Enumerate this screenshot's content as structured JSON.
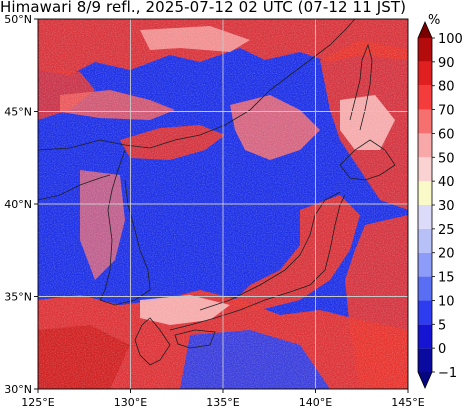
{
  "title": "Himawari 8/9 refl., 2025-07-12 02 UTC (07-12 11 JST)",
  "map": {
    "lon_range": [
      125,
      145
    ],
    "lat_range": [
      30,
      50
    ],
    "x_ticks": [
      {
        "value": 125,
        "label": "125°E"
      },
      {
        "value": 130,
        "label": "130°E"
      },
      {
        "value": 135,
        "label": "135°E"
      },
      {
        "value": 140,
        "label": "140°E"
      },
      {
        "value": 145,
        "label": "145°E"
      }
    ],
    "y_ticks": [
      {
        "value": 30,
        "label": "30°N"
      },
      {
        "value": 35,
        "label": "35°N"
      },
      {
        "value": 40,
        "label": "40°N"
      },
      {
        "value": 45,
        "label": "45°N"
      },
      {
        "value": 50,
        "label": "50°N"
      }
    ],
    "grid": true,
    "background_color": "#1f32e6"
  },
  "colorbar": {
    "unit": "%",
    "extend": "both",
    "levels": [
      {
        "label": "−1",
        "value": -1
      },
      {
        "label": "0",
        "value": 0
      },
      {
        "label": "5",
        "value": 5
      },
      {
        "label": "10",
        "value": 10
      },
      {
        "label": "15",
        "value": 15
      },
      {
        "label": "20",
        "value": 20
      },
      {
        "label": "25",
        "value": 25
      },
      {
        "label": "30",
        "value": 30
      },
      {
        "label": "40",
        "value": 40
      },
      {
        "label": "50",
        "value": 50
      },
      {
        "label": "60",
        "value": 60
      },
      {
        "label": "70",
        "value": 70
      },
      {
        "label": "80",
        "value": 80
      },
      {
        "label": "90",
        "value": 90
      },
      {
        "label": "100",
        "value": 100
      }
    ],
    "colors": [
      "#0a0aa0",
      "#1414d2",
      "#2e3cf0",
      "#5a6ef4",
      "#8c9cf8",
      "#b8c0f8",
      "#dcdcfa",
      "#fafac8",
      "#fad2d2",
      "#f8a8a8",
      "#f67070",
      "#f43c3c",
      "#e02020",
      "#b40c0c"
    ],
    "under_color": "#060680",
    "over_color": "#7a0000"
  }
}
